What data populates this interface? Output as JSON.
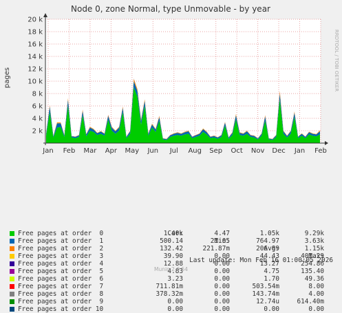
{
  "title": "Node 0, zone Normal, type Unmovable - by year",
  "side_label": "RRDTOOL / TOBI OETIKER",
  "legend_header": {
    "cur": "Cur:",
    "min": "Min:",
    "avg": "Avg:",
    "max": "Max:"
  },
  "legend": [
    {
      "name": "Free pages at order  0",
      "color": "#00cc00",
      "cur": "1.40k",
      "min": "4.47",
      "avg": "1.05k",
      "max": "9.29k"
    },
    {
      "name": "Free pages at order  1",
      "color": "#0066b3",
      "cur": "500.14",
      "min": "21.05",
      "avg": "764.97",
      "max": "3.63k"
    },
    {
      "name": "Free pages at order  2",
      "color": "#ff8000",
      "cur": "132.42",
      "min": "221.87m",
      "avg": "206.89",
      "max": "1.15k"
    },
    {
      "name": "Free pages at order  3",
      "color": "#ffcc00",
      "cur": "39.90",
      "min": "0.00",
      "avg": "44.43",
      "max": "401.29"
    },
    {
      "name": "Free pages at order  4",
      "color": "#330099",
      "cur": "12.88",
      "min": "0.00",
      "avg": "13.27",
      "max": "254.86"
    },
    {
      "name": "Free pages at order  5",
      "color": "#990099",
      "cur": "4.83",
      "min": "0.00",
      "avg": "4.75",
      "max": "135.40"
    },
    {
      "name": "Free pages at order  6",
      "color": "#ccff00",
      "cur": "3.23",
      "min": "0.00",
      "avg": "1.70",
      "max": "49.36"
    },
    {
      "name": "Free pages at order  7",
      "color": "#ff0000",
      "cur": "711.81m",
      "min": "0.00",
      "avg": "503.54m",
      "max": "8.00"
    },
    {
      "name": "Free pages at order  8",
      "color": "#808080",
      "cur": "378.32m",
      "min": "0.00",
      "avg": "143.74m",
      "max": "4.00"
    },
    {
      "name": "Free pages at order  9",
      "color": "#008f00",
      "cur": "0.00",
      "min": "0.00",
      "avg": "12.74u",
      "max": "614.40m"
    },
    {
      "name": "Free pages at order 10",
      "color": "#00487d",
      "cur": "0.00",
      "min": "0.00",
      "avg": "0.00",
      "max": "0.00"
    }
  ],
  "last_update": "Last update: Mon Feb 16 01:00:05 2026",
  "version": "Munin 2.0.54",
  "chart_data": {
    "type": "area",
    "title": "Node 0, zone Normal, type Unmovable - by year",
    "ylabel": "pages",
    "xlabel": "",
    "ylim": [
      0,
      20000
    ],
    "y_ticks": [
      2000,
      4000,
      6000,
      8000,
      10000,
      12000,
      14000,
      16000,
      18000,
      20000
    ],
    "y_tick_labels": [
      "2 k",
      "4 k",
      "6 k",
      "8 k",
      "10 k",
      "12 k",
      "14 k",
      "16 k",
      "18 k",
      "20 k"
    ],
    "x_tick_labels": [
      "Jan",
      "Feb",
      "Mar",
      "Apr",
      "May",
      "Jun",
      "Jul",
      "Aug",
      "Sep",
      "Oct",
      "Nov",
      "Dec",
      "Jan",
      "Feb"
    ],
    "stacked": true,
    "grid": true,
    "series": [
      {
        "name": "Free pages at order  0",
        "color": "#00cc00",
        "values": [
          1200,
          5000,
          900,
          2500,
          2600,
          1000,
          6000,
          900,
          800,
          1000,
          4500,
          1100,
          2000,
          1800,
          1300,
          1500,
          1200,
          3800,
          2000,
          1500,
          2000,
          5000,
          800,
          1500,
          9000,
          7500,
          3000,
          6000,
          1200,
          2500,
          1800,
          3600,
          600,
          500,
          1000,
          1200,
          1300,
          1200,
          1400,
          1500,
          800,
          1000,
          1200,
          1800,
          1400,
          800,
          900,
          700,
          1000,
          2800,
          700,
          1300,
          3800,
          1300,
          1200,
          1500,
          1000,
          900,
          600,
          1200,
          3600,
          600,
          500,
          1000,
          7000,
          1500,
          900,
          1500,
          4200,
          800,
          1200,
          800,
          1400,
          1200,
          1100,
          1400
        ]
      },
      {
        "name": "Free pages at order  1",
        "color": "#0066b3",
        "values": [
          300,
          900,
          200,
          700,
          600,
          250,
          1000,
          200,
          200,
          250,
          700,
          300,
          500,
          400,
          300,
          350,
          300,
          600,
          500,
          400,
          500,
          700,
          200,
          400,
          1000,
          900,
          600,
          800,
          300,
          500,
          400,
          600,
          150,
          150,
          250,
          300,
          350,
          300,
          350,
          400,
          200,
          250,
          300,
          450,
          350,
          200,
          250,
          200,
          250,
          500,
          200,
          350,
          700,
          350,
          300,
          400,
          250,
          250,
          150,
          300,
          700,
          150,
          150,
          250,
          1000,
          400,
          250,
          400,
          700,
          200,
          300,
          200,
          350,
          300,
          300,
          500
        ]
      },
      {
        "name": "Free pages at order  2",
        "color": "#ff8000",
        "values": [
          50,
          150,
          40,
          120,
          100,
          45,
          200,
          40,
          40,
          50,
          150,
          60,
          100,
          80,
          60,
          70,
          60,
          120,
          100,
          80,
          100,
          150,
          40,
          80,
          300,
          250,
          150,
          200,
          60,
          100,
          80,
          150,
          30,
          30,
          50,
          60,
          70,
          60,
          70,
          80,
          40,
          50,
          60,
          90,
          70,
          40,
          50,
          40,
          50,
          100,
          40,
          70,
          150,
          70,
          60,
          80,
          50,
          50,
          30,
          60,
          150,
          30,
          30,
          50,
          300,
          80,
          50,
          80,
          150,
          40,
          60,
          40,
          70,
          60,
          60,
          130
        ]
      },
      {
        "name": "Free pages at order  3",
        "color": "#ffcc00",
        "values": [
          15,
          40,
          10,
          30,
          25,
          12,
          50,
          10,
          10,
          12,
          40,
          15,
          25,
          20,
          15,
          18,
          15,
          30,
          25,
          20,
          25,
          40,
          10,
          20,
          80,
          60,
          40,
          50,
          15,
          25,
          20,
          40,
          8,
          8,
          12,
          15,
          18,
          15,
          18,
          20,
          10,
          12,
          15,
          22,
          18,
          10,
          12,
          10,
          12,
          25,
          10,
          18,
          40,
          18,
          15,
          20,
          12,
          12,
          8,
          15,
          40,
          8,
          8,
          12,
          80,
          20,
          12,
          20,
          40,
          10,
          15,
          10,
          18,
          15,
          15,
          40
        ]
      },
      {
        "name": "Free pages at order  4",
        "color": "#330099",
        "values": [
          5,
          12,
          4,
          10,
          8,
          4,
          15,
          4,
          4,
          4,
          12,
          5,
          8,
          6,
          5,
          6,
          5,
          10,
          8,
          6,
          8,
          12,
          4,
          6,
          25,
          20,
          12,
          15,
          5,
          8,
          6,
          12,
          3,
          3,
          4,
          5,
          6,
          5,
          6,
          6,
          4,
          4,
          5,
          7,
          6,
          4,
          4,
          4,
          4,
          8,
          4,
          6,
          12,
          6,
          5,
          6,
          4,
          4,
          3,
          5,
          12,
          3,
          3,
          4,
          25,
          6,
          4,
          6,
          12,
          4,
          5,
          4,
          6,
          5,
          5,
          13
        ]
      },
      {
        "name": "Free pages at order  5",
        "color": "#990099",
        "values": [
          2,
          5,
          2,
          4,
          3,
          2,
          6,
          2,
          2,
          2,
          5,
          2,
          3,
          3,
          2,
          2,
          2,
          4,
          3,
          2,
          3,
          5,
          2,
          2,
          10,
          8,
          5,
          6,
          2,
          3,
          2,
          5,
          1,
          1,
          2,
          2,
          2,
          2,
          2,
          2,
          2,
          2,
          2,
          3,
          2,
          2,
          2,
          2,
          2,
          3,
          2,
          2,
          5,
          2,
          2,
          2,
          2,
          2,
          1,
          2,
          5,
          1,
          1,
          2,
          10,
          2,
          2,
          2,
          5,
          2,
          2,
          2,
          2,
          2,
          2,
          5
        ]
      }
    ]
  }
}
